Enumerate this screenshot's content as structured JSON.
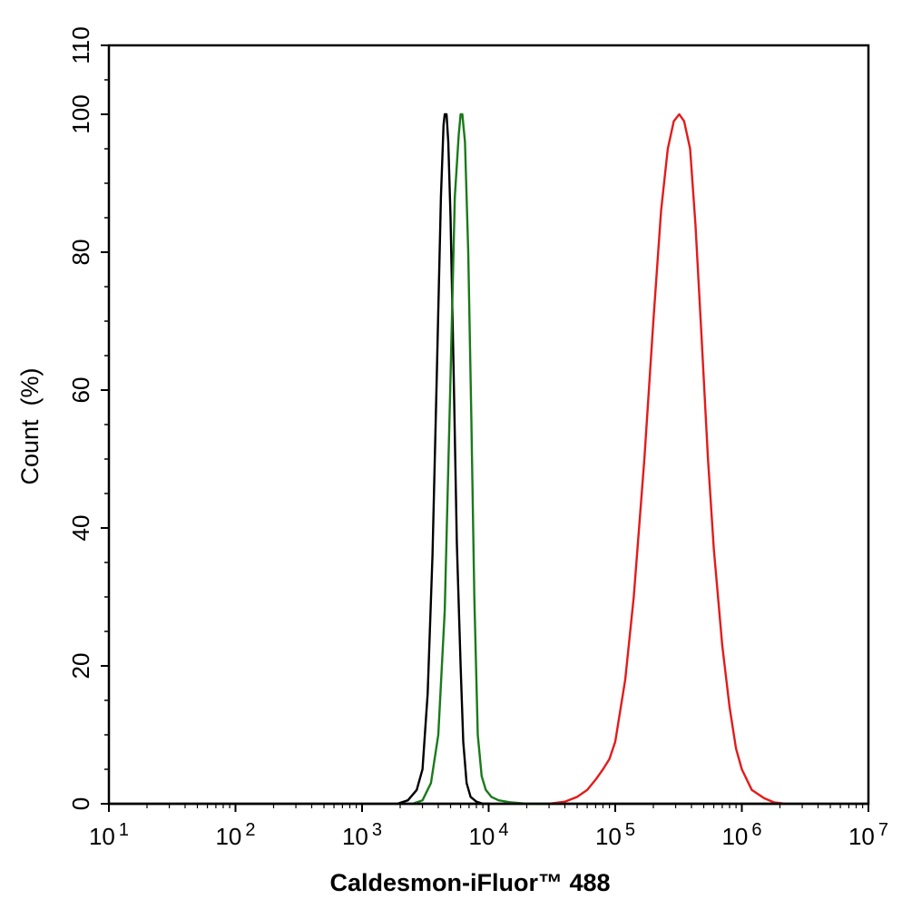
{
  "chart_data": {
    "type": "line",
    "xlabel": "Caldesmon-iFluor™ 488",
    "ylabel": "Count  (%)",
    "x_scale": "log",
    "xlim": [
      10,
      10000000
    ],
    "ylim": [
      0,
      110
    ],
    "x_ticks": [
      {
        "base": "10",
        "exp": "1",
        "value": 10
      },
      {
        "base": "10",
        "exp": "2",
        "value": 100
      },
      {
        "base": "10",
        "exp": "3",
        "value": 1000
      },
      {
        "base": "10",
        "exp": "4",
        "value": 10000
      },
      {
        "base": "10",
        "exp": "5",
        "value": 100000
      },
      {
        "base": "10",
        "exp": "6",
        "value": 1000000
      },
      {
        "base": "10",
        "exp": "7",
        "value": 10000000
      }
    ],
    "y_ticks": [
      "0",
      "20",
      "40",
      "60",
      "80",
      "100",
      "110"
    ],
    "grid": false,
    "series": [
      {
        "color": "#000000",
        "x": [
          1900,
          2300,
          2700,
          3000,
          3300,
          3600,
          3900,
          4200,
          4400,
          4500,
          4650,
          4800,
          5000,
          5300,
          5600,
          6000,
          6300,
          6700,
          7200,
          8000,
          9000,
          10000
        ],
        "y": [
          0,
          0.5,
          2,
          5,
          16,
          36,
          63,
          88,
          98.5,
          100,
          100,
          96,
          85,
          62,
          38,
          20,
          9,
          3,
          1,
          0.3,
          0,
          0
        ]
      },
      {
        "color": "#1a7a1a",
        "x": [
          2500,
          3000,
          3500,
          4000,
          4500,
          5000,
          5400,
          5800,
          6000,
          6200,
          6500,
          6900,
          7300,
          7700,
          8200,
          8800,
          9500,
          10500,
          12000,
          15000,
          20000,
          30000
        ],
        "y": [
          0,
          0.5,
          3,
          10,
          28,
          62,
          88,
          97,
          100,
          100,
          96,
          80,
          56,
          30,
          10,
          4,
          2,
          1,
          0.5,
          0.2,
          0,
          0
        ]
      },
      {
        "color": "#e31b1b",
        "x": [
          30000,
          40000,
          50000,
          60000,
          70000,
          80000,
          90000,
          100000,
          120000,
          140000,
          170000,
          200000,
          230000,
          260000,
          290000,
          320000,
          350000,
          390000,
          430000,
          480000,
          540000,
          600000,
          700000,
          800000,
          900000,
          1000000,
          1200000,
          1500000,
          1800000,
          2200000
        ],
        "y": [
          0,
          0.3,
          1,
          2,
          3.5,
          5,
          6.5,
          9,
          18,
          30,
          50,
          70,
          86,
          95,
          99,
          100,
          99,
          95,
          84,
          68,
          50,
          37,
          23,
          14,
          8,
          5,
          2,
          0.8,
          0.2,
          0
        ]
      }
    ]
  }
}
